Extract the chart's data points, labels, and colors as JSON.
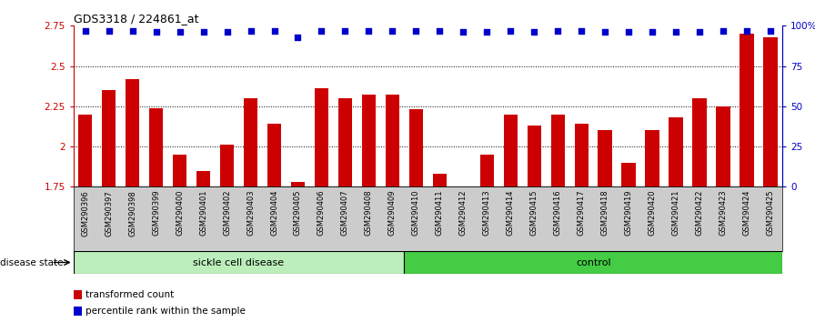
{
  "title": "GDS3318 / 224861_at",
  "samples": [
    "GSM290396",
    "GSM290397",
    "GSM290398",
    "GSM290399",
    "GSM290400",
    "GSM290401",
    "GSM290402",
    "GSM290403",
    "GSM290404",
    "GSM290405",
    "GSM290406",
    "GSM290407",
    "GSM290408",
    "GSM290409",
    "GSM290410",
    "GSM290411",
    "GSM290412",
    "GSM290413",
    "GSM290414",
    "GSM290415",
    "GSM290416",
    "GSM290417",
    "GSM290418",
    "GSM290419",
    "GSM290420",
    "GSM290421",
    "GSM290422",
    "GSM290423",
    "GSM290424",
    "GSM290425"
  ],
  "bar_values": [
    2.2,
    2.35,
    2.42,
    2.24,
    1.95,
    1.85,
    2.01,
    2.3,
    2.14,
    1.78,
    2.36,
    2.3,
    2.32,
    2.32,
    2.23,
    1.83,
    1.75,
    1.95,
    2.2,
    2.13,
    2.2,
    2.14,
    2.1,
    1.9,
    2.1,
    2.18,
    2.3,
    2.25,
    2.7,
    2.68
  ],
  "percentile_values": [
    97,
    97,
    97,
    96,
    96,
    96,
    96,
    97,
    97,
    93,
    97,
    97,
    97,
    97,
    97,
    97,
    96,
    96,
    97,
    96,
    97,
    97,
    96,
    96,
    96,
    96,
    96,
    97,
    97,
    97
  ],
  "sickle_count": 14,
  "ylim_left": [
    1.75,
    2.75
  ],
  "ylim_right": [
    0,
    100
  ],
  "yticks_left": [
    1.75,
    2.0,
    2.25,
    2.5,
    2.75
  ],
  "ytick_labels_left": [
    "1.75",
    "2",
    "2.25",
    "2.5",
    "2.75"
  ],
  "yticks_right": [
    0,
    25,
    50,
    75,
    100
  ],
  "ytick_labels_right": [
    "0",
    "25",
    "50",
    "75",
    "100%"
  ],
  "bar_color": "#cc0000",
  "dot_color": "#0000cc",
  "sickle_color": "#bbeebb",
  "control_color": "#44cc44",
  "label_bg_color": "#cccccc",
  "legend_bar_label": "transformed count",
  "legend_dot_label": "percentile rank within the sample",
  "disease_state_label": "disease state",
  "sickle_label": "sickle cell disease",
  "control_label": "control"
}
